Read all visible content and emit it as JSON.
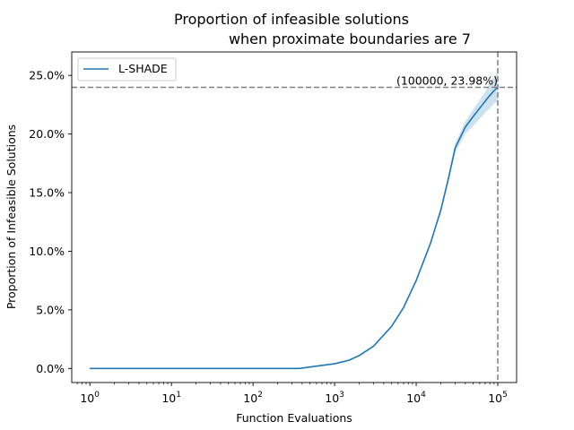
{
  "chart_data": {
    "type": "line",
    "title_line1": "Proportion of infeasible solutions",
    "title_line2": "when proximate boundaries are 7",
    "xlabel": "Function Evaluations",
    "ylabel": "Proportion of Infeasible Solutions",
    "x_scale": "log",
    "xlim": [
      0.6,
      170000
    ],
    "ylim": [
      -0.012,
      0.27
    ],
    "x_ticks": [
      {
        "value": 1,
        "base": "10",
        "exp": "0"
      },
      {
        "value": 10,
        "base": "10",
        "exp": "1"
      },
      {
        "value": 100,
        "base": "10",
        "exp": "2"
      },
      {
        "value": 1000,
        "base": "10",
        "exp": "3"
      },
      {
        "value": 10000,
        "base": "10",
        "exp": "4"
      },
      {
        "value": 100000,
        "base": "10",
        "exp": "5"
      }
    ],
    "y_ticks": [
      {
        "value": 0.0,
        "label": "0.0%"
      },
      {
        "value": 0.05,
        "label": "5.0%"
      },
      {
        "value": 0.1,
        "label": "10.0%"
      },
      {
        "value": 0.15,
        "label": "15.0%"
      },
      {
        "value": 0.2,
        "label": "20.0%"
      },
      {
        "value": 0.25,
        "label": "25.0%"
      }
    ],
    "grid": false,
    "legend_position": "top-left",
    "series": [
      {
        "name": "L-SHADE",
        "color": "#1f77b4",
        "x": [
          1,
          10,
          100,
          370,
          600,
          1000,
          1500,
          2000,
          3000,
          5000,
          7000,
          10000,
          15000,
          20000,
          25000,
          30000,
          40000,
          50000,
          60000,
          70000,
          80000,
          90000,
          100000
        ],
        "y": [
          0,
          0,
          0,
          0,
          0.002,
          0.004,
          0.007,
          0.011,
          0.019,
          0.036,
          0.052,
          0.075,
          0.107,
          0.135,
          0.163,
          0.188,
          0.206,
          0.215,
          0.222,
          0.228,
          0.233,
          0.237,
          0.2398
        ],
        "band_upper": [
          0,
          0,
          0,
          0,
          0.002,
          0.004,
          0.007,
          0.011,
          0.019,
          0.036,
          0.052,
          0.076,
          0.108,
          0.137,
          0.166,
          0.192,
          0.211,
          0.221,
          0.229,
          0.236,
          0.243,
          0.249,
          0.253
        ],
        "band_lower": [
          0,
          0,
          0,
          0,
          0.002,
          0.004,
          0.007,
          0.011,
          0.019,
          0.036,
          0.052,
          0.074,
          0.106,
          0.133,
          0.16,
          0.184,
          0.2,
          0.207,
          0.213,
          0.218,
          0.222,
          0.226,
          0.228
        ]
      }
    ],
    "reference_lines": {
      "x": 100000,
      "y": 0.2398,
      "color": "#808080"
    },
    "annotation": {
      "text": "(100000, 23.98%)",
      "x": 100000,
      "y": 0.2398
    }
  }
}
